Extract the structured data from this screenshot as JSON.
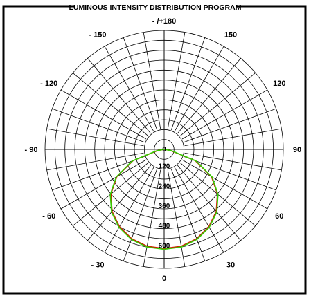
{
  "chart_data": {
    "type": "polar",
    "title": "LUMINOUS INTENSITY DISTRIBUTION PROGRAM",
    "radial_ticks": [
      "0",
      "120",
      "240",
      "360",
      "480",
      "600"
    ],
    "radial_max": 720,
    "angle_labels": [
      {
        "angle": 180,
        "text": "- /+180"
      },
      {
        "angle": 150,
        "text": "150"
      },
      {
        "angle": -150,
        "text": "- 150"
      },
      {
        "angle": 120,
        "text": "120"
      },
      {
        "angle": -120,
        "text": "- 120"
      },
      {
        "angle": 90,
        "text": "90"
      },
      {
        "angle": -90,
        "text": "- 90"
      },
      {
        "angle": 60,
        "text": "60"
      },
      {
        "angle": -60,
        "text": "- 60"
      },
      {
        "angle": 30,
        "text": "30"
      },
      {
        "angle": -30,
        "text": "- 30"
      },
      {
        "angle": 0,
        "text": "0"
      }
    ],
    "series": [
      {
        "color": "#cc2200",
        "angles": [
          0,
          10,
          20,
          30,
          40,
          50,
          60,
          70,
          80,
          90
        ],
        "values": [
          600,
          595,
          575,
          540,
          490,
          420,
          330,
          200,
          40,
          0
        ]
      },
      {
        "color": "#33cc00",
        "angles": [
          0,
          10,
          20,
          30,
          40,
          50,
          60,
          70,
          80,
          90
        ],
        "values": [
          605,
          600,
          580,
          545,
          495,
          425,
          335,
          205,
          45,
          0
        ]
      }
    ]
  }
}
